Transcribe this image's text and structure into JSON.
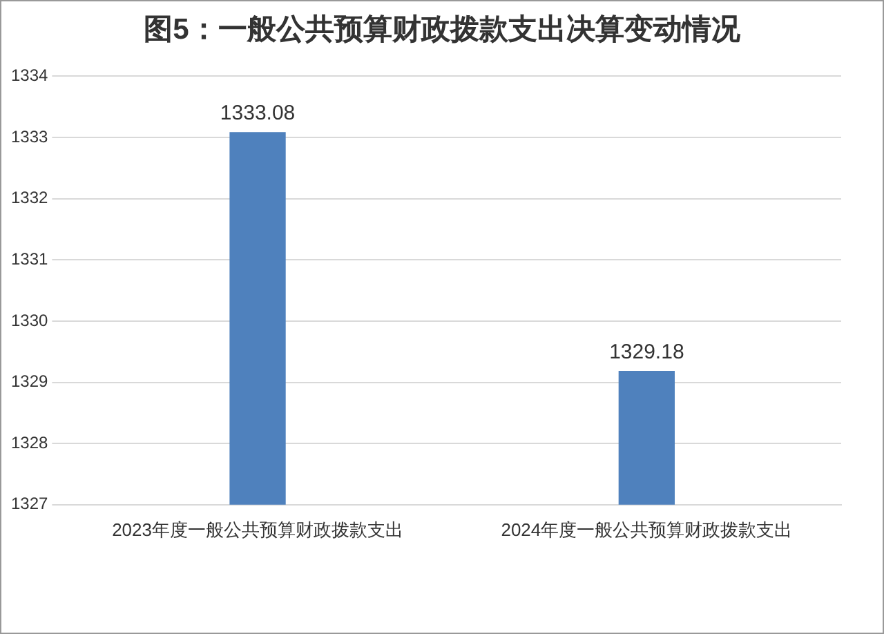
{
  "chart_data": {
    "type": "bar",
    "title": "图5：一般公共预算财政拨款支出决算变动情况",
    "categories": [
      "2023年度一般公共预算财政拨款支出",
      "2024年度一般公共预算财政拨款支出"
    ],
    "values": [
      1333.08,
      1329.18
    ],
    "color": "#4f81bd",
    "ylim": [
      1327,
      1334
    ],
    "yticks": [
      1327,
      1328,
      1329,
      1330,
      1331,
      1332,
      1333,
      1334
    ],
    "grid": "y",
    "data_labels": true,
    "legend": false
  }
}
